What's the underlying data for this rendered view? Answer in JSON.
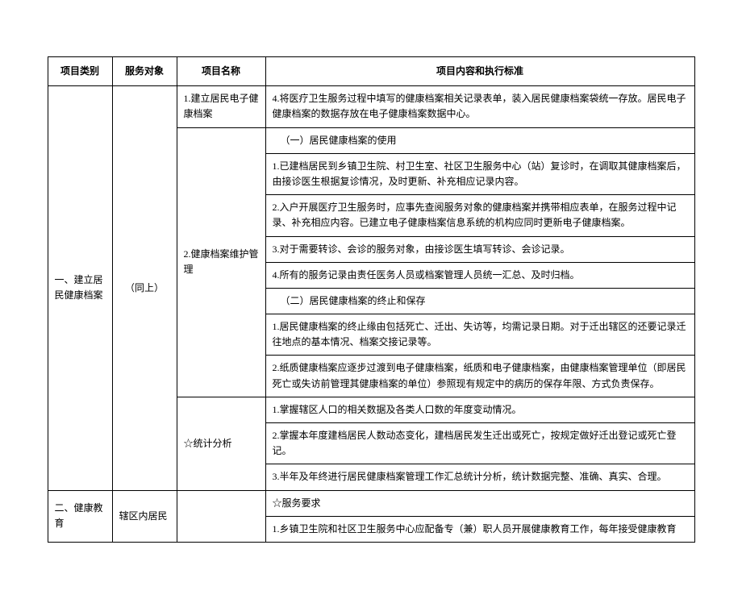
{
  "headers": {
    "category": "项目类别",
    "target": "服务对象",
    "name": "项目名称",
    "content": "项目内容和执行标准"
  },
  "section1": {
    "category": "一、建立居民健康档案",
    "target": "（同上）",
    "item1": {
      "name": "1.建立居民电子健康档案",
      "c1": "4.将医疗卫生服务过程中填写的健康档案相关记录表单，装入居民健康档案袋统一存放。居民电子健康档案的数据存放在电子健康档案数据中心。"
    },
    "item2": {
      "name": "2.健康档案维护管理",
      "sub1": "（一）居民健康档案的使用",
      "c1": "1.已建档居民到乡镇卫生院、村卫生室、社区卫生服务中心（站）复诊时，在调取其健康档案后，由接诊医生根据复诊情况，及时更新、补充相应记录内容。",
      "c2": "2.入户开展医疗卫生服务时，应事先查阅服务对象的健康档案并携带相应表单，在服务过程中记录、补充相应内容。已建立电子健康档案信息系统的机构应同时更新电子健康档案。",
      "c3": "3.对于需要转诊、会诊的服务对象，由接诊医生填写转诊、会诊记录。",
      "c4": "4.所有的服务记录由责任医务人员或档案管理人员统一汇总、及时归档。",
      "sub2": "（二）居民健康档案的终止和保存",
      "c5": "1.居民健康档案的终止缘由包括死亡、迁出、失访等，均需记录日期。对于迁出辖区的还要记录迁往地点的基本情况、档案交接记录等。",
      "c6": "2.纸质健康档案应逐步过渡到电子健康档案，纸质和电子健康档案，由健康档案管理单位（即居民死亡或失访前管理其健康档案的单位）参照现有规定中的病历的保存年限、方式负责保存。"
    },
    "item3": {
      "name": "☆统计分析",
      "c1": "1.掌握辖区人口的相关数据及各类人口数的年度变动情况。",
      "c2": "2.掌握本年度建档居民人数动态变化，建档居民发生迁出或死亡，按规定做好迁出登记或死亡登记。",
      "c3": "3.半年及年终进行居民健康档案管理工作汇总统计分析，统计数据完整、准确、真实、合理。"
    }
  },
  "section2": {
    "category": "二、健康教育",
    "target": "辖区内居民",
    "sub": "☆服务要求",
    "c1": "1.乡镇卫生院和社区卫生服务中心应配备专（兼）职人员开展健康教育工作，每年接受健康教育"
  }
}
